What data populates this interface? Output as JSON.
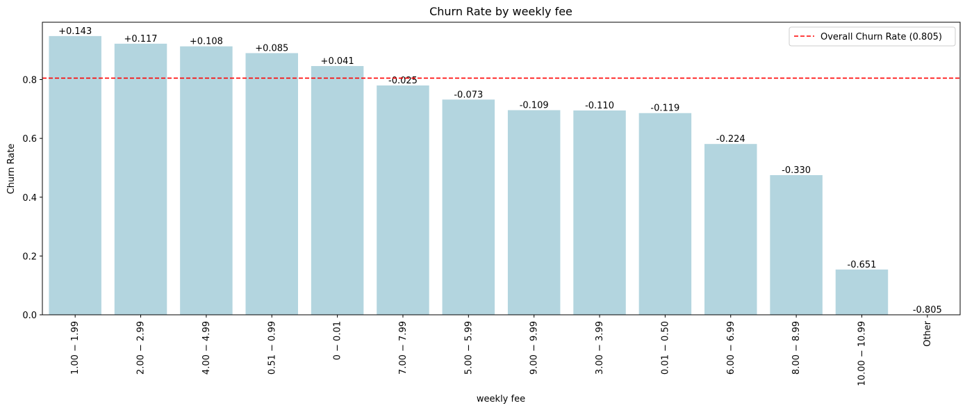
{
  "chart_data": {
    "type": "bar",
    "title": "Churn Rate by weekly fee",
    "xlabel": "weekly fee",
    "ylabel": "Churn Rate",
    "categories": [
      "1.00 − 1.99",
      "2.00 − 2.99",
      "4.00 − 4.99",
      "0.51 − 0.99",
      "0 − 0.01",
      "7.00 − 7.99",
      "5.00 − 5.99",
      "9.00 − 9.99",
      "3.00 − 3.99",
      "0.01 − 0.50",
      "6.00 − 6.99",
      "8.00 − 8.99",
      "10.00 − 10.99",
      "Other"
    ],
    "values": [
      0.948,
      0.922,
      0.913,
      0.89,
      0.846,
      0.78,
      0.732,
      0.696,
      0.695,
      0.686,
      0.581,
      0.475,
      0.154,
      0.0
    ],
    "data_labels": [
      "+0.143",
      "+0.117",
      "+0.108",
      "+0.085",
      "+0.041",
      "-0.025",
      "-0.073",
      "-0.109",
      "-0.110",
      "-0.119",
      "-0.224",
      "-0.330",
      "-0.651",
      "-0.805"
    ],
    "ylim": [
      0,
      0.995
    ],
    "yticks": [
      0.0,
      0.2,
      0.4,
      0.6,
      0.8
    ],
    "ytick_labels": [
      "0.0",
      "0.2",
      "0.4",
      "0.6",
      "0.8"
    ],
    "reference_line": {
      "value": 0.805,
      "label": "Overall Churn Rate (0.805)",
      "color": "#ff0000",
      "style": "dashed"
    },
    "bar_color": "#b3d5df",
    "grid": false,
    "legend_position": "top-right"
  }
}
